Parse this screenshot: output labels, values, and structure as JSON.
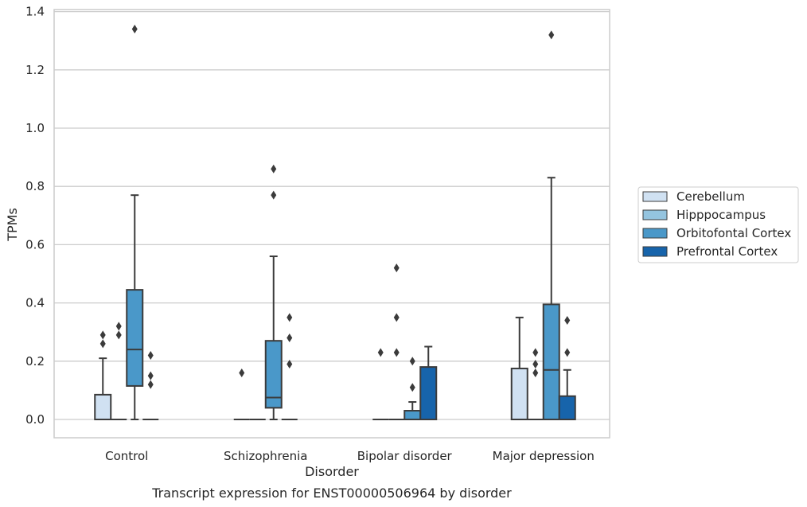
{
  "chart_data": {
    "type": "box",
    "title": "",
    "caption": "Transcript expression for ENST00000506964 by disorder",
    "xlabel": "Disorder",
    "ylabel": "TPMs",
    "ylim": [
      -0.065,
      1.41
    ],
    "yticks": [
      "0.0",
      "0.2",
      "0.4",
      "0.6",
      "0.8",
      "1.0",
      "1.2",
      "1.4"
    ],
    "grid": "horizontal",
    "legend_position": "right",
    "categories": [
      "Control",
      "Schizophrenia",
      "Bipolar disorder",
      "Major depression"
    ],
    "series": [
      {
        "name": "Cerebellum",
        "color": "#d0e1f2",
        "boxes": [
          {
            "q1": 0,
            "median": 0,
            "q3": 0.085,
            "whisker_low": 0,
            "whisker_high": 0.21,
            "outliers": [
              0.26,
              0.29
            ]
          },
          {
            "q1": 0,
            "median": 0,
            "q3": 0,
            "whisker_low": 0,
            "whisker_high": 0,
            "outliers": [
              0.16
            ]
          },
          {
            "q1": 0,
            "median": 0,
            "q3": 0,
            "whisker_low": 0,
            "whisker_high": 0,
            "outliers": [
              0.23
            ]
          },
          {
            "q1": 0,
            "median": 0,
            "q3": 0.175,
            "whisker_low": 0,
            "whisker_high": 0.35,
            "outliers": []
          }
        ]
      },
      {
        "name": "Hipppocampus",
        "color": "#94c4df",
        "boxes": [
          {
            "q1": 0,
            "median": 0,
            "q3": 0,
            "whisker_low": 0,
            "whisker_high": 0,
            "outliers": [
              0.29,
              0.32
            ]
          },
          {
            "q1": 0,
            "median": 0,
            "q3": 0,
            "whisker_low": 0,
            "whisker_high": 0,
            "outliers": []
          },
          {
            "q1": 0,
            "median": 0,
            "q3": 0,
            "whisker_low": 0,
            "whisker_high": 0,
            "outliers": [
              0.23,
              0.35,
              0.52
            ]
          },
          {
            "q1": 0,
            "median": 0,
            "q3": 0,
            "whisker_low": 0,
            "whisker_high": 0,
            "outliers": [
              0.16,
              0.19,
              0.23
            ]
          }
        ]
      },
      {
        "name": "Orbitofontal Cortex",
        "color": "#4a98c9",
        "boxes": [
          {
            "q1": 0.115,
            "median": 0.24,
            "q3": 0.445,
            "whisker_low": 0,
            "whisker_high": 0.77,
            "outliers": [
              1.34
            ]
          },
          {
            "q1": 0.04,
            "median": 0.075,
            "q3": 0.27,
            "whisker_low": 0,
            "whisker_high": 0.56,
            "outliers": [
              0.77,
              0.86
            ]
          },
          {
            "q1": 0,
            "median": 0,
            "q3": 0.03,
            "whisker_low": 0,
            "whisker_high": 0.06,
            "outliers": [
              0.11,
              0.2
            ]
          },
          {
            "q1": 0,
            "median": 0.17,
            "q3": 0.395,
            "whisker_low": 0,
            "whisker_high": 0.83,
            "outliers": [
              1.32
            ]
          }
        ]
      },
      {
        "name": "Prefrontal Cortex",
        "color": "#1764ab",
        "boxes": [
          {
            "q1": 0,
            "median": 0,
            "q3": 0,
            "whisker_low": 0,
            "whisker_high": 0,
            "outliers": [
              0.12,
              0.15,
              0.22
            ]
          },
          {
            "q1": 0,
            "median": 0,
            "q3": 0,
            "whisker_low": 0,
            "whisker_high": 0,
            "outliers": [
              0.19,
              0.28,
              0.35
            ]
          },
          {
            "q1": 0,
            "median": 0,
            "q3": 0.18,
            "whisker_low": 0,
            "whisker_high": 0.25,
            "outliers": []
          },
          {
            "q1": 0,
            "median": 0,
            "q3": 0.08,
            "whisker_low": 0,
            "whisker_high": 0.17,
            "outliers": [
              0.23,
              0.34
            ]
          }
        ]
      }
    ]
  }
}
